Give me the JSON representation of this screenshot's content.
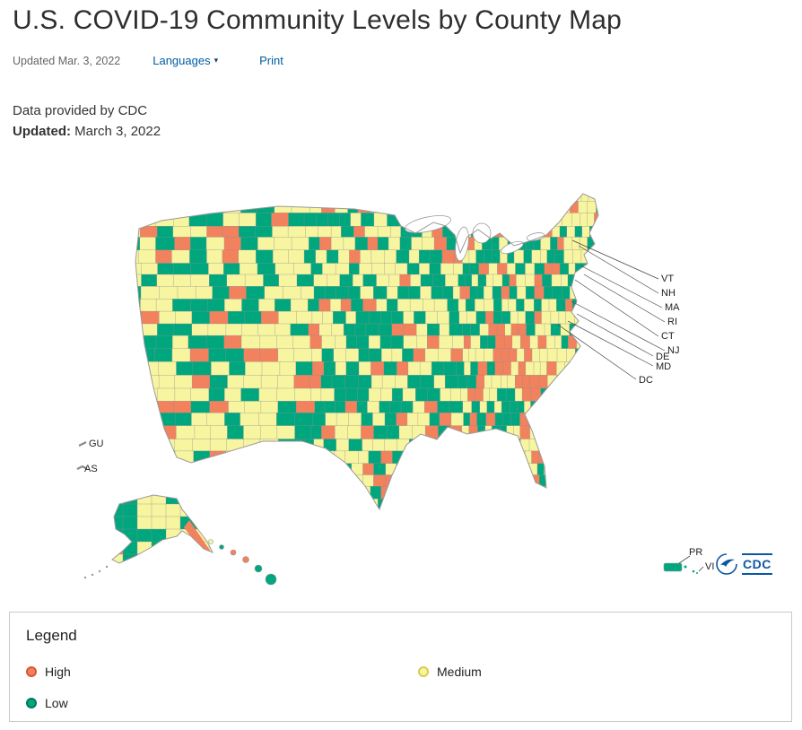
{
  "header": {
    "title": "U.S. COVID-19 Community Levels by County Map",
    "updated_short": "Updated Mar. 3, 2022",
    "languages_label": "Languages",
    "print_label": "Print",
    "data_provided": "Data provided by CDC",
    "updated_label": "Updated:",
    "updated_date": "March 3, 2022"
  },
  "icons": {
    "caret_down": "▾"
  },
  "map": {
    "state_labels": [
      "VT",
      "NH",
      "MA",
      "RI",
      "CT",
      "NJ",
      "DE",
      "MD",
      "DC"
    ],
    "territory_labels": [
      "GU",
      "AS",
      "PR",
      "VI"
    ],
    "cdc_logo_text": "CDC",
    "colors": {
      "high": "#F2815E",
      "medium": "#F7F5A0",
      "low": "#00A77E",
      "county_border": "#8f8f8f",
      "outline": "#9a9a9a",
      "leader_line": "#444444"
    }
  },
  "legend": {
    "title": "Legend",
    "items": [
      {
        "label": "High",
        "fill": "#F2815E",
        "ring": "#DA5732"
      },
      {
        "label": "Medium",
        "fill": "#F8F59E",
        "ring": "#D8CD4E"
      },
      {
        "label": "Low",
        "fill": "#00A77E",
        "ring": "#007A5C"
      }
    ]
  },
  "theme": {
    "link_blue": "#005EA2",
    "logo_blue": "#0B57A4"
  }
}
